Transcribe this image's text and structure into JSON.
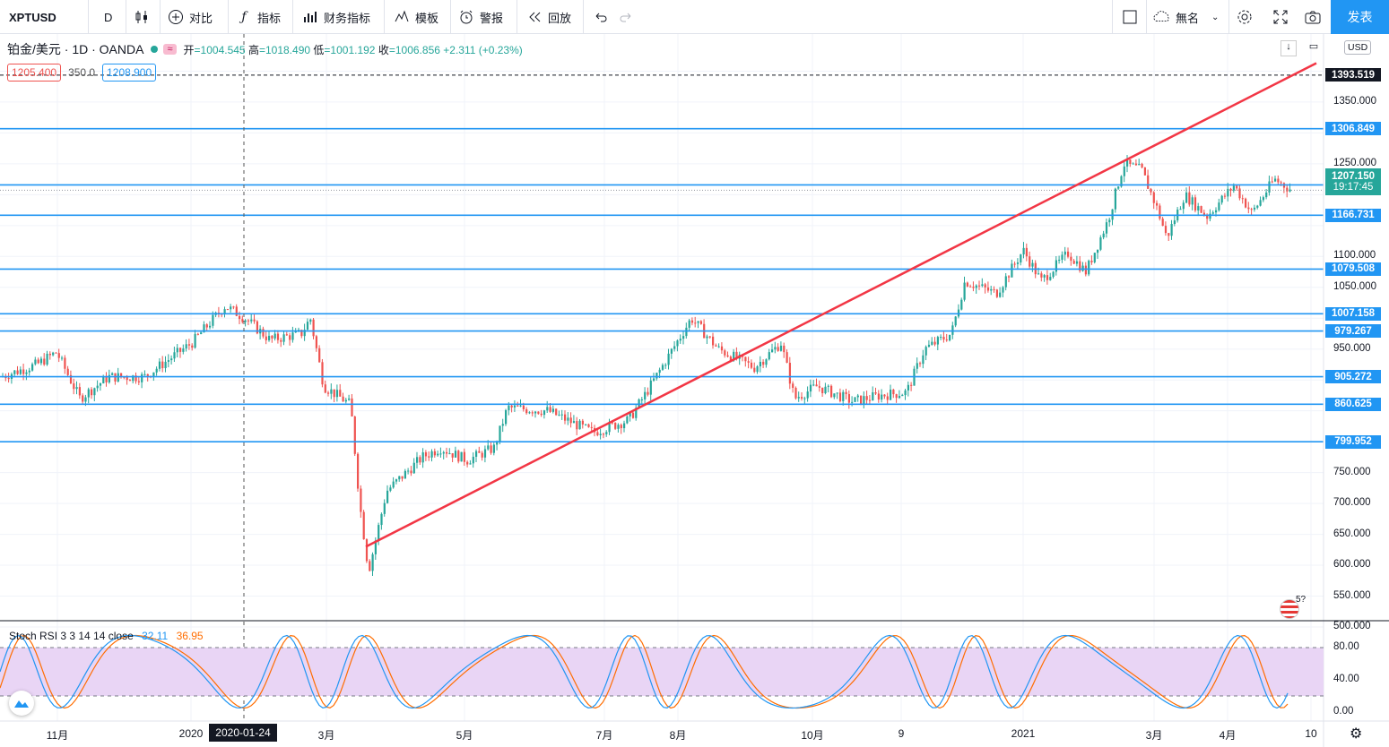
{
  "toolbar": {
    "symbol": "XPTUSD",
    "interval": "D",
    "compare": "对比",
    "indicators": "指标",
    "financials": "财务指标",
    "templates": "模板",
    "alert": "警报",
    "replay": "回放",
    "layout_name": "無名",
    "publish": "发表"
  },
  "legend": {
    "title": "铂金/美元 · 1D · OANDA",
    "open_label": "开",
    "open": "1004.545",
    "high_label": "高",
    "high": "1018.490",
    "low_label": "低",
    "low": "1001.192",
    "close_label": "收",
    "close": "1006.856",
    "change": "+2.311 (+0.23%)"
  },
  "quote": {
    "bid": "1205.400",
    "spread": "350.0",
    "ask": "1208.900"
  },
  "currency": "USD",
  "price_axis": {
    "ticks": [
      "1350.000",
      "1250.000",
      "1100.000",
      "1050.000",
      "950.000",
      "750.000",
      "700.000",
      "650.000",
      "600.000",
      "550.000",
      "500.000"
    ]
  },
  "hlines": [
    {
      "label": "1393.519",
      "color": "#131722"
    },
    {
      "label": "1306.849",
      "color": "#2196f3"
    },
    {
      "label": "1215.845",
      "color": "#2196f3"
    },
    {
      "label": "1166.731",
      "color": "#2196f3"
    },
    {
      "label": "1079.508",
      "color": "#2196f3"
    },
    {
      "label": "1007.158",
      "color": "#2196f3"
    },
    {
      "label": "979.267",
      "color": "#2196f3"
    },
    {
      "label": "905.272",
      "color": "#2196f3"
    },
    {
      "label": "860.625",
      "color": "#2196f3"
    },
    {
      "label": "799.952",
      "color": "#2196f3"
    }
  ],
  "last_price": {
    "value": "1207.150",
    "countdown": "19:17:45",
    "color": "#26a69a"
  },
  "stoch": {
    "name": "Stoch RSI 3 3 14 14 close",
    "k": "32.11",
    "d": "36.95",
    "k_color": "#2196f3",
    "d_color": "#ff6d00",
    "ticks": [
      "80.00",
      "40.00",
      "0.00"
    ]
  },
  "time_axis": {
    "labels": [
      "11月",
      "2020",
      "3月",
      "5月",
      "7月",
      "8月",
      "10月",
      "9",
      "2021",
      "3月",
      "4月",
      "10"
    ],
    "crosshair_date": "2020-01-24"
  },
  "colors": {
    "up": "#26a69a",
    "down": "#ef5350",
    "trend": "#f23645",
    "level": "#2196f3",
    "band": "#e1bee7"
  }
}
